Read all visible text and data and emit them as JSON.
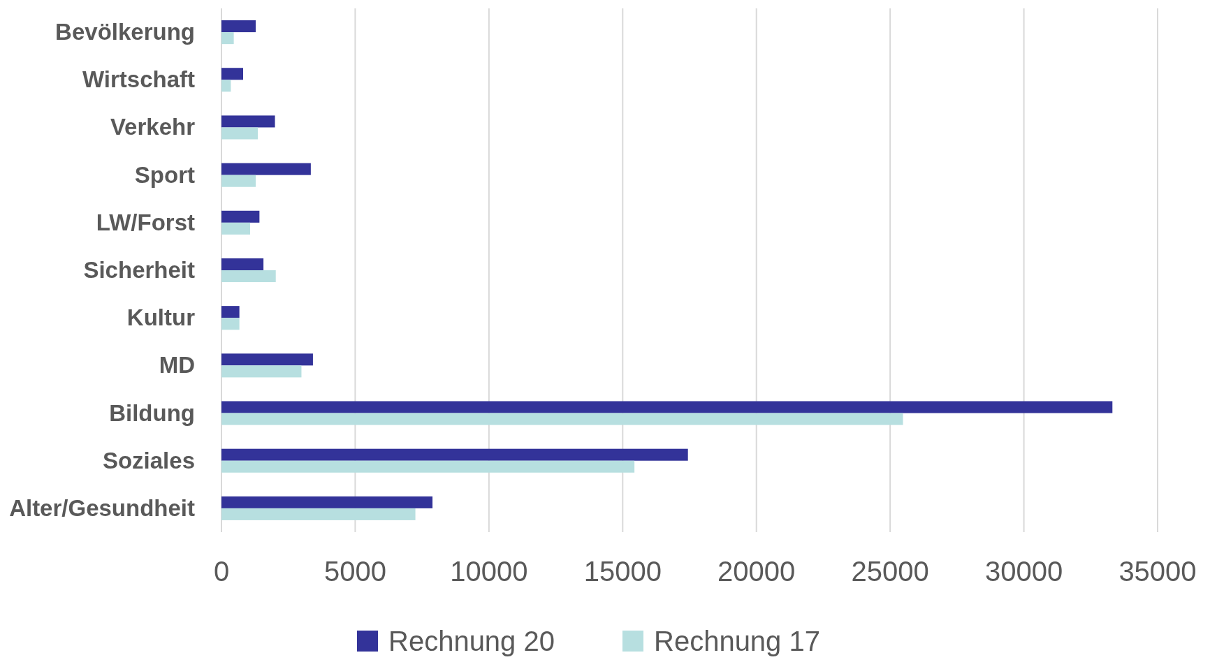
{
  "chart_data": {
    "type": "bar",
    "orientation": "horizontal",
    "categories": [
      "Bevölkerung",
      "Wirtschaft",
      "Verkehr",
      "Sport",
      "LW/Forst",
      "Sicherheit",
      "Kultur",
      "MD",
      "Bildung",
      "Soziales",
      "Alter/Gesundheit"
    ],
    "series": [
      {
        "name": "Rechnung 20",
        "color": "#333399",
        "values": [
          1280,
          810,
          2000,
          3340,
          1420,
          1570,
          670,
          3420,
          33310,
          17440,
          7890
        ]
      },
      {
        "name": "Rechnung 17",
        "color": "#b7dfe0",
        "values": [
          460,
          350,
          1360,
          1280,
          1070,
          2030,
          670,
          2990,
          25480,
          15440,
          7250
        ]
      }
    ],
    "xlim": [
      0,
      35000
    ],
    "xticks": [
      0,
      5000,
      10000,
      15000,
      20000,
      25000,
      30000,
      35000
    ],
    "grid": "x",
    "legend": "bottom"
  }
}
